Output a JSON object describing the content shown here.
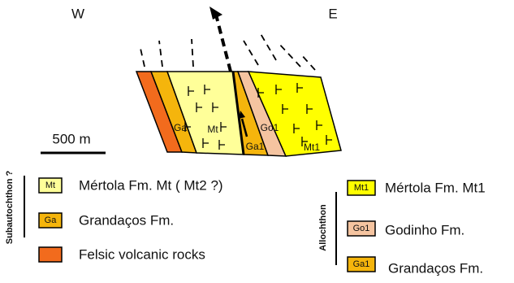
{
  "compass": {
    "west": "W",
    "east": "E"
  },
  "scale_bar": "500 m",
  "section_labels": [
    "Ga",
    "Mt",
    "Go1",
    "Ga1",
    "Mt1"
  ],
  "legend": {
    "subautochthon": {
      "title": "Subautochthon ?",
      "items": [
        {
          "code": "Mt",
          "label": "Mértola Fm. Mt ( Mt2 ?)"
        },
        {
          "code": "Ga",
          "label": "Grandaços Fm."
        },
        {
          "label": "Felsic volcanic rocks"
        }
      ]
    },
    "allochthon": {
      "title": "Allochthon",
      "items": [
        {
          "code": "Mt1",
          "label": "Mértola Fm. Mt1"
        },
        {
          "code": "Go1",
          "label": "Godinho Fm."
        },
        {
          "code": "Ga1",
          "label": "Grandaços Fm."
        }
      ]
    }
  }
}
